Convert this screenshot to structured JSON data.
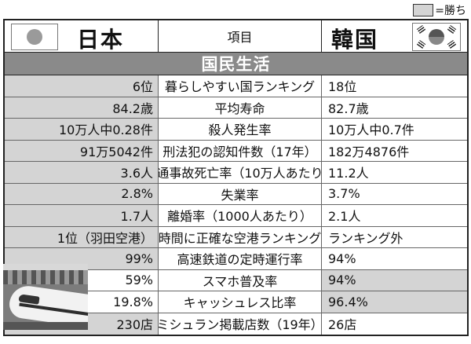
{
  "legend": {
    "label": "=勝ち",
    "win_color": "#d4d4d4"
  },
  "header": {
    "japan": "日本",
    "item": "項目",
    "korea": "韓国"
  },
  "section": {
    "title": "国民生活",
    "color": "#8a8a8a"
  },
  "rows": [
    {
      "japan": "6位",
      "item": "暮らしやすい国ランキング",
      "korea": "18位",
      "winner": "japan"
    },
    {
      "japan": "84.2歳",
      "item": "平均寿命",
      "korea": "82.7歳",
      "winner": "japan"
    },
    {
      "japan": "10万人中0.28件",
      "item": "殺人発生率",
      "korea": "10万人中0.7件",
      "winner": "japan"
    },
    {
      "japan": "91万5042件",
      "item": "刑法犯の認知件数（17年）",
      "korea": "182万4876件",
      "winner": "japan"
    },
    {
      "japan": "3.6人",
      "item": "交通事故死亡率（10万人あたり）",
      "korea": "11.2人",
      "winner": "japan"
    },
    {
      "japan": "2.8%",
      "item": "失業率",
      "korea": "3.7%",
      "winner": "japan"
    },
    {
      "japan": "1.7人",
      "item": "離婚率（1000人あたり）",
      "korea": "2.1人",
      "winner": "japan"
    },
    {
      "japan": "1位（羽田空港）",
      "item": "時間に正確な空港ランキング",
      "korea": "ランキング外",
      "winner": "japan"
    },
    {
      "japan": "99%",
      "item": "高速鉄道の定時運行率",
      "korea": "94%",
      "winner": "japan"
    },
    {
      "japan": "59%",
      "item": "スマホ普及率",
      "korea": "94%",
      "winner": "korea"
    },
    {
      "japan": "19.8%",
      "item": "キャッシュレス比率",
      "korea": "96.4%",
      "winner": "korea"
    },
    {
      "japan": "230店",
      "item": "ミシュラン掲載店数（19年）",
      "korea": "26店",
      "winner": "japan"
    }
  ]
}
